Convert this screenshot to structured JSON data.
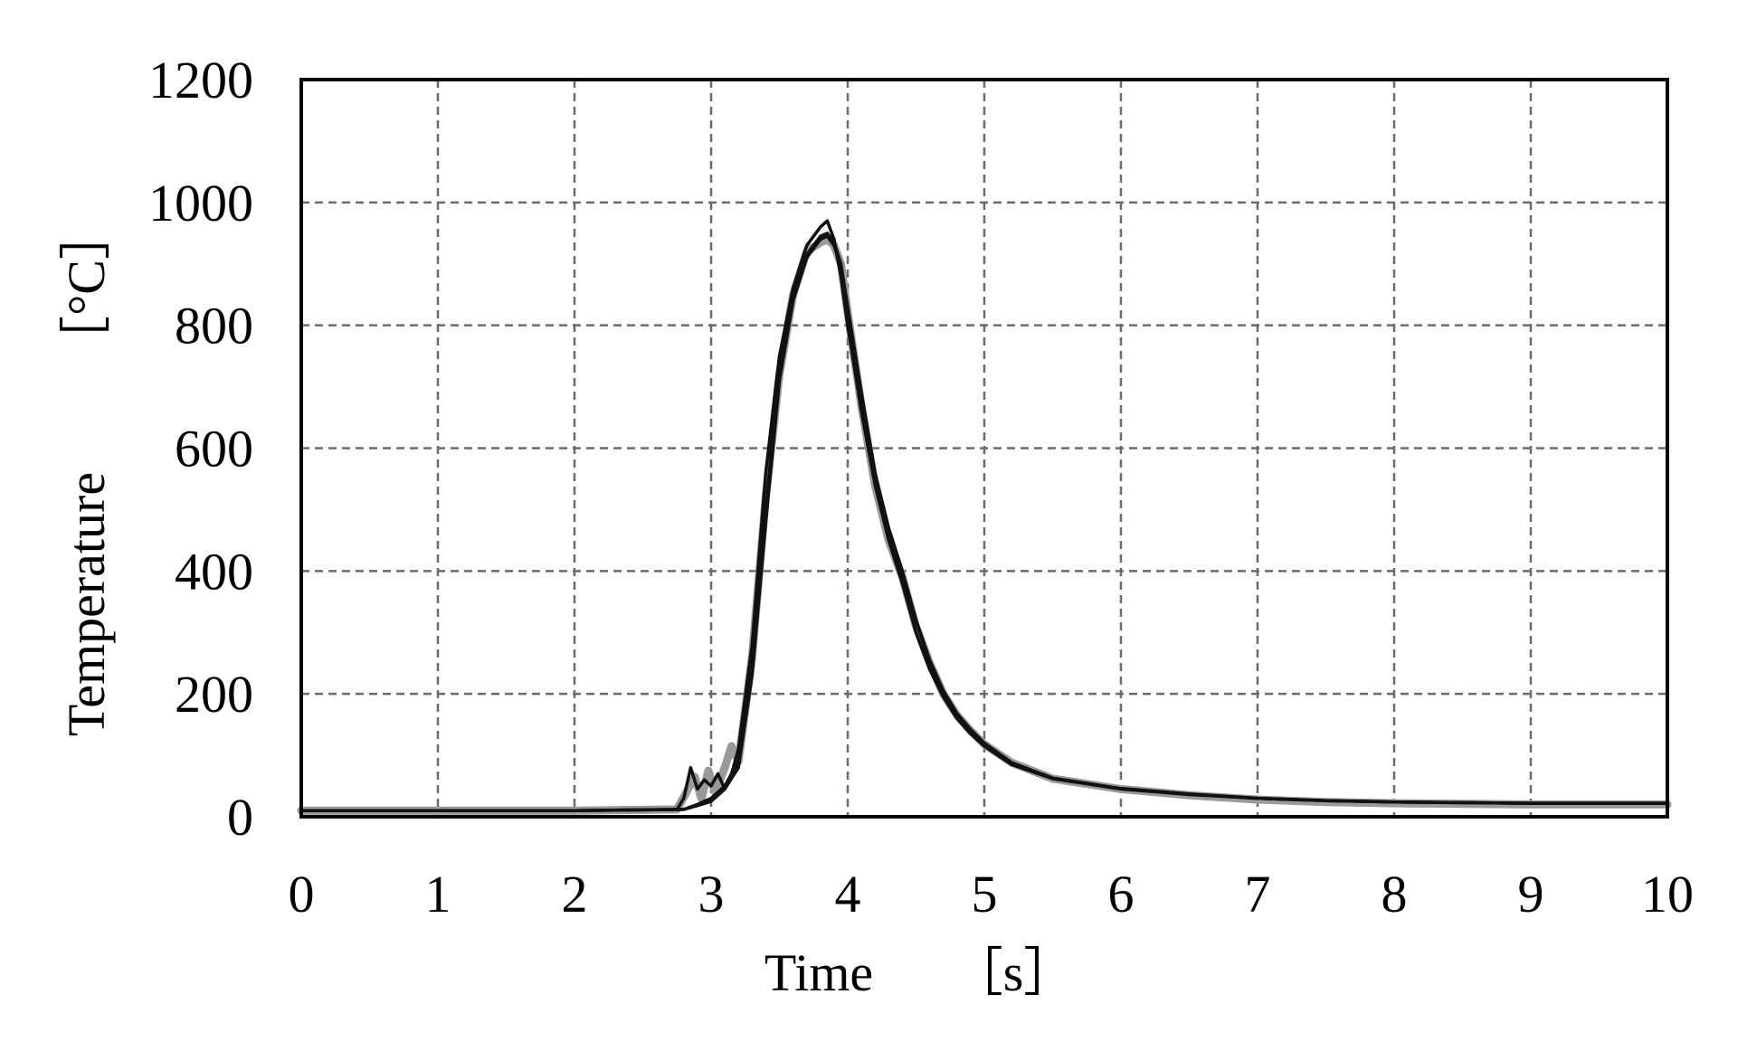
{
  "chart_data": {
    "type": "line",
    "title": "",
    "xlabel": "Time",
    "xunit": "［s］",
    "ylabel": "Temperature",
    "yunit": "［°C］",
    "xlim": [
      0,
      10
    ],
    "ylim": [
      0,
      1200
    ],
    "xticks": [
      0,
      1,
      2,
      3,
      4,
      5,
      6,
      7,
      8,
      9,
      10
    ],
    "xtick_labels": [
      "0",
      "1",
      "2",
      "3",
      "4",
      "5",
      "6",
      "7",
      "8",
      "9",
      "10"
    ],
    "yticks": [
      0,
      200,
      400,
      600,
      800,
      1000,
      1200
    ],
    "ytick_labels": [
      "0",
      "200",
      "400",
      "600",
      "800",
      "1000",
      "1200"
    ],
    "grid": true,
    "legend": false,
    "colors": {
      "series_dark": "#111111",
      "series_gray": "#9a9a9a",
      "grid": "#6b6b6b",
      "frame": "#000000"
    },
    "series": [
      {
        "color": "#9a9a9a",
        "x": [
          0,
          1,
          2,
          2.75,
          2.82,
          2.88,
          2.93,
          2.98,
          3.03,
          3.1,
          3.15,
          3.2,
          3.3,
          3.4,
          3.5,
          3.6,
          3.7,
          3.8,
          3.85,
          3.9,
          3.95,
          4.0,
          4.1,
          4.2,
          4.3,
          4.4,
          4.5,
          4.6,
          4.7,
          4.8,
          4.9,
          5.0,
          5.2,
          5.5,
          6.0,
          6.5,
          7.0,
          7.5,
          8.0,
          9.0,
          10.0
        ],
        "y": [
          10,
          10,
          10,
          12,
          40,
          65,
          30,
          75,
          40,
          80,
          115,
          90,
          260,
          520,
          720,
          850,
          920,
          935,
          940,
          930,
          900,
          820,
          670,
          540,
          450,
          390,
          310,
          250,
          200,
          165,
          140,
          118,
          88,
          62,
          45,
          35,
          28,
          24,
          22,
          20,
          20
        ]
      },
      {
        "color": "#111111",
        "x": [
          0,
          1,
          2,
          2.75,
          2.8,
          2.85,
          2.9,
          2.95,
          3.0,
          3.05,
          3.1,
          3.15,
          3.2,
          3.3,
          3.4,
          3.5,
          3.6,
          3.7,
          3.8,
          3.85,
          3.9,
          3.95,
          4.0,
          4.1,
          4.2,
          4.3,
          4.4,
          4.5,
          4.6,
          4.7,
          4.8,
          4.9,
          5.0,
          5.2,
          5.5,
          6.0,
          6.5,
          7.0,
          7.5,
          8.0,
          9.0,
          10.0
        ],
        "y": [
          10,
          10,
          10,
          12,
          30,
          80,
          45,
          60,
          50,
          70,
          45,
          70,
          110,
          280,
          560,
          750,
          860,
          930,
          960,
          970,
          940,
          880,
          800,
          660,
          540,
          450,
          380,
          300,
          240,
          195,
          160,
          135,
          115,
          85,
          62,
          46,
          37,
          30,
          26,
          24,
          22,
          22
        ]
      },
      {
        "color": "#111111",
        "x": [
          0,
          1,
          2,
          2.8,
          2.9,
          3.0,
          3.1,
          3.2,
          3.3,
          3.4,
          3.5,
          3.6,
          3.7,
          3.8,
          3.85,
          3.9,
          3.95,
          4.0,
          4.1,
          4.2,
          4.3,
          4.4,
          4.5,
          4.6,
          4.7,
          4.8,
          4.9,
          5.0,
          5.2,
          5.5,
          6.0,
          6.5,
          7.0,
          7.5,
          8.0,
          9.0,
          10.0
        ],
        "y": [
          10,
          10,
          10,
          12,
          20,
          30,
          50,
          90,
          240,
          500,
          730,
          850,
          915,
          945,
          950,
          935,
          900,
          830,
          690,
          560,
          470,
          400,
          320,
          255,
          205,
          168,
          142,
          120,
          88,
          63,
          46,
          37,
          30,
          26,
          24,
          22,
          22
        ]
      },
      {
        "color": "#111111",
        "x": [
          0,
          1,
          2,
          2.8,
          2.9,
          3.0,
          3.1,
          3.2,
          3.3,
          3.4,
          3.5,
          3.6,
          3.7,
          3.8,
          3.85,
          3.9,
          3.95,
          4.0,
          4.1,
          4.2,
          4.3,
          4.4,
          4.5,
          4.6,
          4.7,
          4.8,
          4.9,
          5.0,
          5.2,
          5.5,
          6.0,
          6.5,
          7.0,
          7.5,
          8.0,
          9.0,
          10.0
        ],
        "y": [
          10,
          10,
          10,
          12,
          18,
          25,
          45,
          80,
          230,
          480,
          710,
          840,
          910,
          940,
          945,
          930,
          895,
          825,
          685,
          555,
          465,
          395,
          318,
          252,
          203,
          166,
          140,
          118,
          86,
          62,
          45,
          36,
          30,
          26,
          24,
          22,
          22
        ]
      }
    ]
  }
}
